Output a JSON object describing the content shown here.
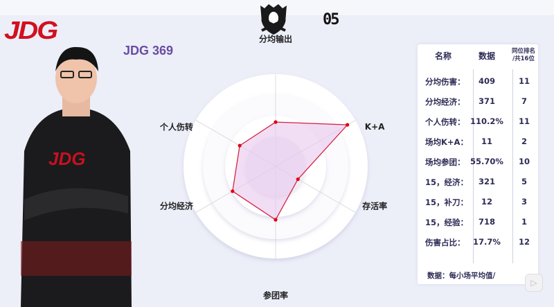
{
  "team_logo": "JDG",
  "player": {
    "title": "JDG 369"
  },
  "header": {
    "event_logo": "Worlds",
    "number": "05"
  },
  "chart_data": {
    "type": "radar",
    "axes": [
      "分均输出",
      "K+A",
      "存活率",
      "参团率",
      "分均经济",
      "个人伤转"
    ],
    "values": [
      0.48,
      0.9,
      0.28,
      0.58,
      0.54,
      0.45
    ],
    "range": [
      0,
      1
    ],
    "colors": {
      "line": "#d62040",
      "fill": "#e8c8ec",
      "point": "#e00010"
    }
  },
  "table": {
    "headers": [
      "名称",
      "数据",
      "同位排名",
      "/共16位"
    ],
    "rows": [
      {
        "name": "分均伤害：",
        "value": "409",
        "rank": "11"
      },
      {
        "name": "分均经济：",
        "value": "371",
        "rank": "7"
      },
      {
        "name": "个人伤转：",
        "value": "110.2%",
        "rank": "11"
      },
      {
        "name": "场均K+A：",
        "value": "11",
        "rank": "2"
      },
      {
        "name": "场均参团：",
        "value": "55.70%",
        "rank": "10"
      },
      {
        "name": "15，经济：",
        "value": "321",
        "rank": "5"
      },
      {
        "name": "15，补刀：",
        "value": "12",
        "rank": "3"
      },
      {
        "name": "15，经验：",
        "value": "718",
        "rank": "1"
      },
      {
        "name": "伤害占比：",
        "value": "17.7%",
        "rank": "12"
      }
    ],
    "footnote": "数据：每小场平均值/"
  },
  "icons": {
    "play": "play-icon"
  }
}
